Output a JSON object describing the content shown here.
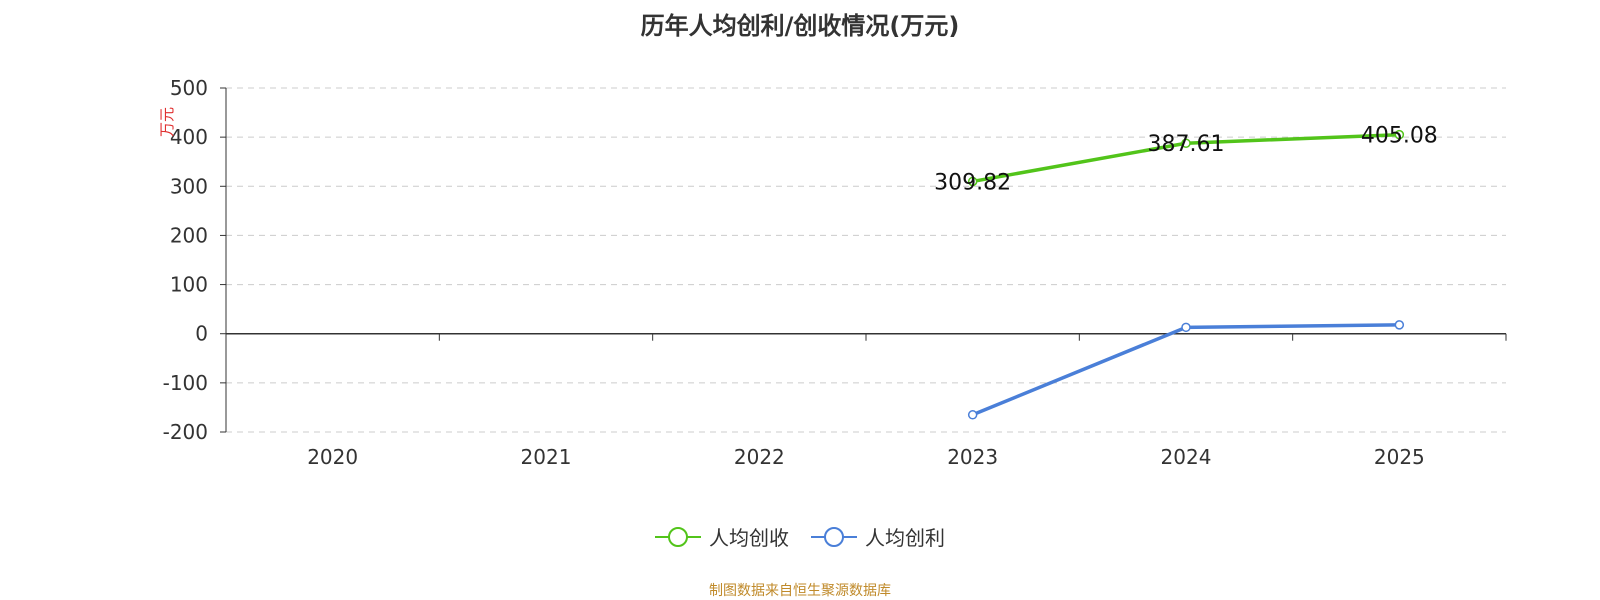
{
  "title": "历年人均创利/创收情况(万元)",
  "chart_data": {
    "type": "line",
    "categories": [
      "2020",
      "2021",
      "2022",
      "2023",
      "2024",
      "2025"
    ],
    "ylabel": "万元",
    "ylim": [
      -200,
      500
    ],
    "yticks": [
      500,
      400,
      300,
      200,
      100,
      0,
      -100,
      -200
    ],
    "grid": true,
    "legend_position": "bottom",
    "series": [
      {
        "name": "人均创收",
        "color": "#52c41a",
        "values": [
          null,
          null,
          null,
          309.82,
          387.61,
          405.08
        ],
        "labels": [
          null,
          null,
          null,
          "309.82",
          "387.61",
          "405.08"
        ]
      },
      {
        "name": "人均创利",
        "color": "#4a7fd8",
        "values": [
          null,
          null,
          null,
          -165,
          13,
          18
        ]
      }
    ]
  },
  "source": "制图数据来自恒生聚源数据库"
}
